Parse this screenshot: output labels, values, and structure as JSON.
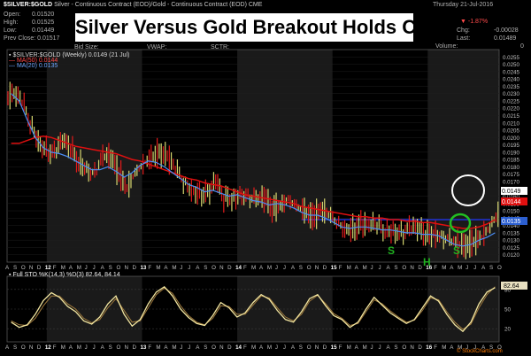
{
  "header": {
    "symbol": "$SILVER:$GOLD",
    "description": "Silver - Continuous Contract (EOD)/Gold - Continuous Contract (EOD) CME",
    "date": "Thursday 21-Jul-2016",
    "source": "© StockCharts.com",
    "open_label": "Open:",
    "open": "0.01520",
    "high_label": "High:",
    "high": "0.01525",
    "low_label": "Low:",
    "low": "0.01449",
    "prev_close_label": "Prev Close:",
    "prev_close": "0.01517",
    "bid_size_label": "Bid Size:",
    "vwap_label": "VWAP:",
    "sctr_label": "SCTR:",
    "last_label": "Last:",
    "last": "0.01489",
    "chg_label": "Chg:",
    "chg": "-0.00028",
    "pct": "-1.87%",
    "volume_label": "Volume:",
    "volume": "0"
  },
  "title_banner": "Silver Versus Gold Breakout Holds Chart",
  "legend": {
    "price": "$SILVER:$GOLD (Weekly) 0.0149 (21 Jul)",
    "ma50": "MA(50) 0.0144",
    "ma20": "MA(20) 0.0135"
  },
  "annotations": {
    "s_left": "S",
    "h": "H",
    "s_right": "S"
  },
  "price_labels": {
    "last": "0.0149",
    "ma50": "0.0144",
    "ma20": "0.0135"
  },
  "stoch_legend": "Full STO %K(14,3) %D(3) 82.64, 84.14",
  "stoch_label": "82.64",
  "colors": {
    "background": "#000000",
    "up_bar": "#d7d770",
    "down_bar": "#e21a1a",
    "ma50": "#e01010",
    "ma20": "#4a8ef5",
    "resistance": "#1f32d6",
    "circle_white": "#ffffff",
    "circle_green": "#22c022",
    "letters_green": "#20b020",
    "stoch_k": "#f3e6a0",
    "stoch_d": "#a07a3c"
  },
  "chart_data": [
    {
      "type": "line",
      "title": "$SILVER:$GOLD (Weekly)",
      "ylim": [
        0.0115,
        0.026
      ],
      "yticks": [
        0.012,
        0.0125,
        0.013,
        0.0135,
        0.014,
        0.0145,
        0.015,
        0.0155,
        0.016,
        0.0165,
        0.017,
        0.0175,
        0.018,
        0.0185,
        0.019,
        0.0195,
        0.02,
        0.0205,
        0.021,
        0.0215,
        0.022,
        0.0225,
        0.023,
        0.0235,
        0.024,
        0.0245,
        0.025,
        0.0255
      ],
      "ytick_labels": [
        "0.0120",
        "0.0125",
        "0.0130",
        "0.0135",
        "0.0140",
        "0.0145",
        "0.0150",
        "0.0155",
        "0.0160",
        "0.0165",
        "0.0170",
        "0.0175",
        "0.0180",
        "0.0185",
        "0.0190",
        "0.0195",
        "0.0200",
        "0.0205",
        "0.0210",
        "0.0215",
        "0.0220",
        "0.0225",
        "0.0230",
        "0.0235",
        "0.0240",
        "0.0245",
        "0.0250",
        "0.0255"
      ],
      "x_month_labels": [
        "A",
        "S",
        "O",
        "N",
        "D",
        "12",
        "F",
        "M",
        "A",
        "M",
        "J",
        "J",
        "A",
        "S",
        "O",
        "N",
        "D",
        "13",
        "F",
        "M",
        "A",
        "M",
        "J",
        "J",
        "A",
        "S",
        "O",
        "N",
        "D",
        "14",
        "F",
        "M",
        "A",
        "M",
        "J",
        "J",
        "A",
        "S",
        "O",
        "N",
        "D",
        "15",
        "F",
        "M",
        "A",
        "M",
        "J",
        "J",
        "A",
        "S",
        "O",
        "N",
        "D",
        "16",
        "F",
        "M",
        "A",
        "M",
        "J",
        "J",
        "A",
        "S",
        "O"
      ],
      "resistance_level": 0.0144,
      "series": [
        {
          "name": "$SILVER:$GOLD",
          "style": "ohlc_bars",
          "close": [
            0.0228,
            0.0224,
            0.021,
            0.02,
            0.0192,
            0.0188,
            0.0196,
            0.0192,
            0.0185,
            0.018,
            0.0175,
            0.0186,
            0.0186,
            0.0176,
            0.0166,
            0.0176,
            0.0182,
            0.0187,
            0.019,
            0.0186,
            0.0178,
            0.017,
            0.0166,
            0.0163,
            0.0161,
            0.0168,
            0.0158,
            0.016,
            0.0163,
            0.016,
            0.0156,
            0.0158,
            0.0152,
            0.0155,
            0.0158,
            0.0153,
            0.015,
            0.0146,
            0.015,
            0.0147,
            0.0142,
            0.0139,
            0.0139,
            0.014,
            0.0138,
            0.014,
            0.0137,
            0.0139,
            0.0135,
            0.0136,
            0.0137,
            0.0134,
            0.0136,
            0.0133,
            0.013,
            0.0127,
            0.0126,
            0.0129,
            0.0132,
            0.0139,
            0.0149
          ]
        },
        {
          "name": "MA(50)",
          "style": "line",
          "values": [
            0.0196,
            0.0196,
            0.0198,
            0.02,
            0.0201,
            0.02,
            0.0198,
            0.0196,
            0.0194,
            0.0193,
            0.0192,
            0.0191,
            0.019,
            0.0189,
            0.0187,
            0.0185,
            0.0184,
            0.0182,
            0.018,
            0.0178,
            0.0176,
            0.0174,
            0.0172,
            0.0171,
            0.0169,
            0.0168,
            0.0167,
            0.0165,
            0.0163,
            0.0161,
            0.016,
            0.0159,
            0.0158,
            0.0157,
            0.0156,
            0.0155,
            0.0153,
            0.0152,
            0.0151,
            0.015,
            0.0149,
            0.0148,
            0.0147,
            0.0146,
            0.0146,
            0.0145,
            0.0145,
            0.0144,
            0.0144,
            0.0143,
            0.0143,
            0.0142,
            0.0142,
            0.0141,
            0.014,
            0.0139,
            0.0138,
            0.0138,
            0.0139,
            0.0141,
            0.0144
          ]
        },
        {
          "name": "MA(20)",
          "style": "line",
          "values": [
            0.023,
            0.0225,
            0.0212,
            0.02,
            0.0193,
            0.019,
            0.0189,
            0.0187,
            0.0184,
            0.0181,
            0.0178,
            0.0178,
            0.018,
            0.0177,
            0.0173,
            0.0176,
            0.0181,
            0.0184,
            0.0183,
            0.018,
            0.0176,
            0.0172,
            0.0168,
            0.0166,
            0.0163,
            0.0164,
            0.0162,
            0.016,
            0.0161,
            0.0159,
            0.0157,
            0.0156,
            0.0154,
            0.0155,
            0.0154,
            0.0152,
            0.0149,
            0.0147,
            0.0147,
            0.0145,
            0.0142,
            0.0139,
            0.0138,
            0.0139,
            0.0139,
            0.0138,
            0.0137,
            0.0137,
            0.0136,
            0.0135,
            0.0135,
            0.0134,
            0.0134,
            0.0133,
            0.013,
            0.0127,
            0.0126,
            0.0127,
            0.013,
            0.0132,
            0.0135
          ]
        }
      ]
    },
    {
      "type": "line",
      "title": "Full STO %K(14,3) %D(3) 82.64, 84.14",
      "ylim": [
        0,
        100
      ],
      "yticks": [
        20,
        50,
        80
      ],
      "ytick_labels": [
        "20",
        "50",
        "80"
      ],
      "series": [
        {
          "name": "%K",
          "values": [
            30,
            22,
            26,
            42,
            63,
            75,
            68,
            54,
            46,
            32,
            27,
            38,
            58,
            70,
            42,
            24,
            34,
            58,
            76,
            84,
            70,
            50,
            37,
            28,
            25,
            40,
            60,
            52,
            38,
            44,
            60,
            72,
            65,
            48,
            34,
            30,
            46,
            66,
            72,
            55,
            40,
            34,
            22,
            30,
            50,
            68,
            56,
            44,
            36,
            28,
            34,
            52,
            70,
            62,
            42,
            26,
            16,
            30,
            58,
            76,
            82.64
          ]
        },
        {
          "name": "%D",
          "values": [
            32,
            26,
            25,
            36,
            55,
            70,
            70,
            58,
            50,
            36,
            29,
            34,
            52,
            66,
            48,
            30,
            32,
            52,
            72,
            82,
            74,
            55,
            40,
            30,
            26,
            36,
            55,
            54,
            42,
            42,
            56,
            70,
            67,
            52,
            38,
            32,
            42,
            62,
            71,
            58,
            43,
            36,
            25,
            28,
            46,
            64,
            58,
            47,
            38,
            30,
            33,
            48,
            67,
            64,
            46,
            30,
            19,
            27,
            52,
            72,
            84.14
          ]
        }
      ]
    }
  ]
}
